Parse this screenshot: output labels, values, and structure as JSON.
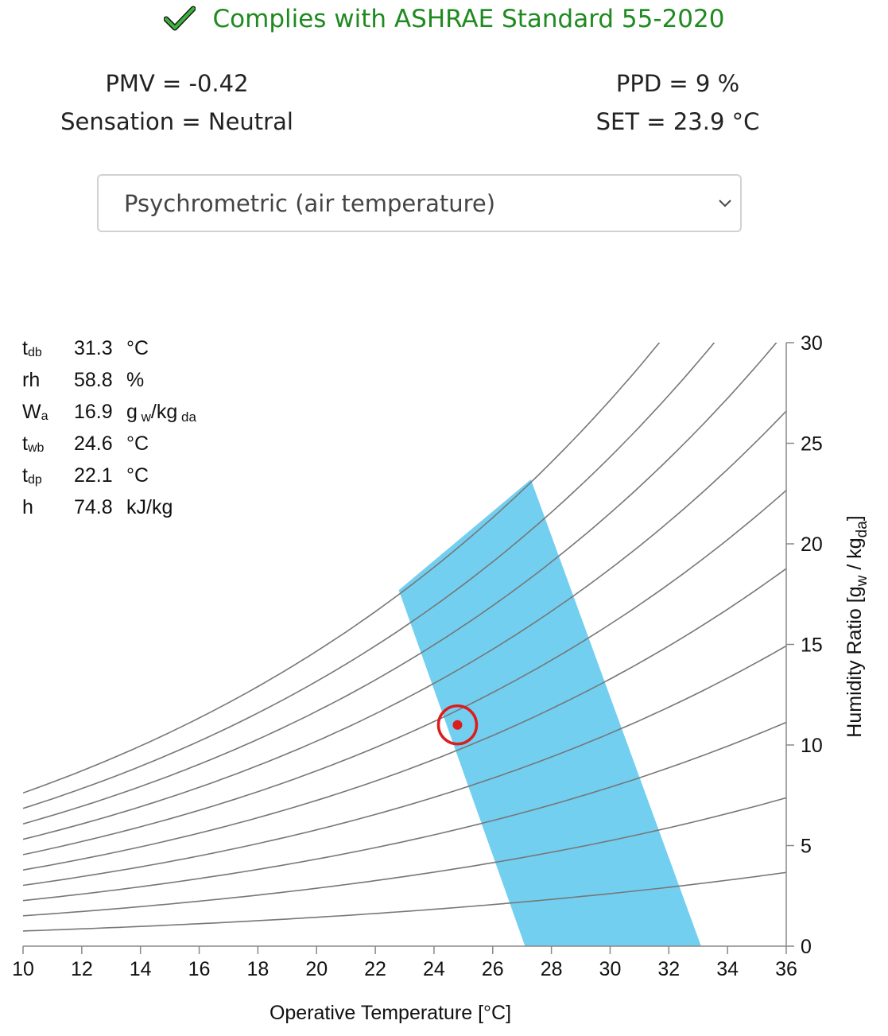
{
  "compliance": {
    "text": "Complies with ASHRAE Standard 55-2020",
    "icon": "check-icon",
    "color": "#1f8a1f"
  },
  "results": {
    "pmv": "PMV = -0.42",
    "sensation": "Sensation = Neutral",
    "ppd": "PPD = 9 %",
    "set": "SET = 23.9 °C"
  },
  "chart_selector": {
    "selected": "Psychrometric (air temperature)",
    "icon": "chevron-down-icon"
  },
  "properties": [
    {
      "symbol": "t",
      "sub": "db",
      "value": "31.3",
      "unit": "°C",
      "unit_sub": "",
      "unit_tail": ""
    },
    {
      "symbol": "rh",
      "sub": "",
      "value": "58.8",
      "unit": "%",
      "unit_sub": "",
      "unit_tail": ""
    },
    {
      "symbol": "W",
      "sub": "a",
      "value": "16.9",
      "unit": "g",
      "unit_sub": "w",
      "unit_tail": "/kg",
      "unit_sub2": "da"
    },
    {
      "symbol": "t",
      "sub": "wb",
      "value": "24.6",
      "unit": "°C",
      "unit_sub": "",
      "unit_tail": ""
    },
    {
      "symbol": "t",
      "sub": "dp",
      "value": "22.1",
      "unit": "°C",
      "unit_sub": "",
      "unit_tail": ""
    },
    {
      "symbol": "h",
      "sub": "",
      "value": "74.8",
      "unit": "kJ/kg",
      "unit_sub": "",
      "unit_tail": ""
    }
  ],
  "chart_data": {
    "type": "line",
    "xlabel": "Operative Temperature [°C]",
    "ylabel": "Humidity Ratio [gw / kgda]",
    "xlim": [
      10,
      36
    ],
    "ylim": [
      0,
      30
    ],
    "x_ticks": [
      10,
      12,
      14,
      16,
      18,
      20,
      22,
      24,
      26,
      28,
      30,
      32,
      34,
      36
    ],
    "y_ticks": [
      0,
      5,
      10,
      15,
      20,
      25,
      30
    ],
    "y_axis_side": "right",
    "rh_curves_percent": [
      10,
      20,
      30,
      40,
      50,
      60,
      70,
      80,
      90,
      100
    ],
    "comfort_zone": {
      "color": "#72cff0",
      "polygon": [
        [
          22.8,
          17.7
        ],
        [
          27.3,
          23.2
        ],
        [
          33.1,
          0
        ],
        [
          27.1,
          0
        ]
      ]
    },
    "current_point": {
      "x": 24.8,
      "y": 11.0,
      "color": "#dd1c1c"
    },
    "line_color": "#777777"
  }
}
